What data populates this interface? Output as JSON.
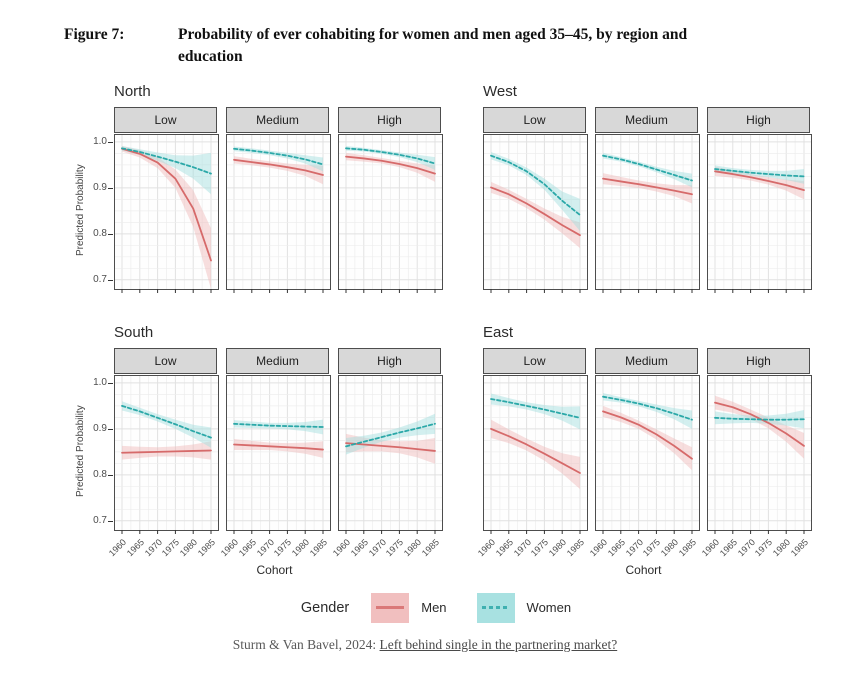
{
  "figure": {
    "label": "Figure 7:",
    "title": "Probability of ever cohabiting for women and men aged 35–45, by region and education"
  },
  "legend": {
    "title": "Gender",
    "men": "Men",
    "women": "Women"
  },
  "footer": {
    "prefix": "Sturm & Van Bavel, 2024: ",
    "link": "Left behind single in the partnering market?"
  },
  "colors": {
    "men": "#d66a6a",
    "men_band": "#f0b9b9",
    "women": "#2ba8a8",
    "women_band": "#9fdede",
    "grid_minor": "#ededed",
    "grid_major": "#e1e1e1",
    "strip_bg": "#d8d8d8",
    "panel_border": "#4d4d4d",
    "tick": "#333333"
  },
  "chart_data": {
    "type": "line",
    "x": [
      1960,
      1965,
      1970,
      1975,
      1980,
      1985
    ],
    "xlabel": "Cohort",
    "ylabel": "Predicted Probability",
    "ylim": [
      0.68,
      1.015
    ],
    "yticks": [
      0.7,
      0.8,
      0.9,
      1.0
    ],
    "grid": true,
    "legend_position": "bottom",
    "facet_labels": [
      "Low",
      "Medium",
      "High"
    ],
    "blocks": [
      {
        "name": "North",
        "panel_start": 0,
        "show_y": true,
        "show_x": false
      },
      {
        "name": "West",
        "panel_start": 3,
        "show_y": false,
        "show_x": false
      },
      {
        "name": "South",
        "panel_start": 6,
        "show_y": true,
        "show_x": true
      },
      {
        "name": "East",
        "panel_start": 9,
        "show_y": false,
        "show_x": true
      }
    ],
    "panels": [
      {
        "region": "North",
        "education": "Low",
        "series": [
          {
            "name": "Men",
            "values": [
              0.985,
              0.974,
              0.955,
              0.92,
              0.855,
              0.742
            ],
            "ci": [
              0.006,
              0.008,
              0.012,
              0.02,
              0.04,
              0.07
            ]
          },
          {
            "name": "Women",
            "values": [
              0.986,
              0.978,
              0.968,
              0.957,
              0.945,
              0.931
            ],
            "ci": [
              0.005,
              0.006,
              0.009,
              0.014,
              0.025,
              0.045
            ]
          }
        ]
      },
      {
        "region": "North",
        "education": "Medium",
        "series": [
          {
            "name": "Men",
            "values": [
              0.961,
              0.956,
              0.951,
              0.945,
              0.938,
              0.928
            ],
            "ci": [
              0.008,
              0.007,
              0.007,
              0.008,
              0.012,
              0.02
            ]
          },
          {
            "name": "Women",
            "values": [
              0.985,
              0.981,
              0.976,
              0.97,
              0.962,
              0.951
            ],
            "ci": [
              0.005,
              0.005,
              0.005,
              0.006,
              0.009,
              0.015
            ]
          }
        ]
      },
      {
        "region": "North",
        "education": "High",
        "series": [
          {
            "name": "Men",
            "values": [
              0.968,
              0.964,
              0.959,
              0.952,
              0.943,
              0.931
            ],
            "ci": [
              0.008,
              0.007,
              0.006,
              0.007,
              0.01,
              0.018
            ]
          },
          {
            "name": "Women",
            "values": [
              0.986,
              0.983,
              0.978,
              0.972,
              0.964,
              0.953
            ],
            "ci": [
              0.005,
              0.004,
              0.004,
              0.005,
              0.008,
              0.014
            ]
          }
        ]
      },
      {
        "region": "West",
        "education": "Low",
        "series": [
          {
            "name": "Men",
            "values": [
              0.901,
              0.886,
              0.866,
              0.843,
              0.819,
              0.797
            ],
            "ci": [
              0.012,
              0.01,
              0.01,
              0.012,
              0.018,
              0.028
            ]
          },
          {
            "name": "Women",
            "values": [
              0.97,
              0.956,
              0.936,
              0.908,
              0.872,
              0.841
            ],
            "ci": [
              0.008,
              0.007,
              0.008,
              0.012,
              0.02,
              0.035
            ]
          }
        ]
      },
      {
        "region": "West",
        "education": "Medium",
        "series": [
          {
            "name": "Men",
            "values": [
              0.92,
              0.914,
              0.908,
              0.901,
              0.894,
              0.886
            ],
            "ci": [
              0.012,
              0.01,
              0.008,
              0.009,
              0.012,
              0.02
            ]
          },
          {
            "name": "Women",
            "values": [
              0.97,
              0.962,
              0.952,
              0.94,
              0.928,
              0.916
            ],
            "ci": [
              0.006,
              0.005,
              0.005,
              0.006,
              0.009,
              0.015
            ]
          }
        ]
      },
      {
        "region": "West",
        "education": "High",
        "series": [
          {
            "name": "Men",
            "values": [
              0.936,
              0.93,
              0.923,
              0.915,
              0.906,
              0.895
            ],
            "ci": [
              0.01,
              0.008,
              0.007,
              0.008,
              0.012,
              0.02
            ]
          },
          {
            "name": "Women",
            "values": [
              0.941,
              0.937,
              0.933,
              0.93,
              0.927,
              0.925
            ],
            "ci": [
              0.008,
              0.006,
              0.006,
              0.007,
              0.01,
              0.016
            ]
          }
        ]
      },
      {
        "region": "South",
        "education": "Low",
        "series": [
          {
            "name": "Men",
            "values": [
              0.848,
              0.849,
              0.85,
              0.851,
              0.852,
              0.853
            ],
            "ci": [
              0.015,
              0.012,
              0.01,
              0.011,
              0.014,
              0.02
            ]
          },
          {
            "name": "Women",
            "values": [
              0.95,
              0.938,
              0.924,
              0.91,
              0.895,
              0.881
            ],
            "ci": [
              0.01,
              0.008,
              0.008,
              0.01,
              0.014,
              0.022
            ]
          }
        ]
      },
      {
        "region": "South",
        "education": "Medium",
        "series": [
          {
            "name": "Men",
            "values": [
              0.866,
              0.864,
              0.862,
              0.86,
              0.858,
              0.855
            ],
            "ci": [
              0.012,
              0.01,
              0.008,
              0.009,
              0.012,
              0.018
            ]
          },
          {
            "name": "Women",
            "values": [
              0.911,
              0.909,
              0.907,
              0.906,
              0.905,
              0.904
            ],
            "ci": [
              0.008,
              0.007,
              0.006,
              0.007,
              0.01,
              0.016
            ]
          }
        ]
      },
      {
        "region": "South",
        "education": "High",
        "series": [
          {
            "name": "Men",
            "values": [
              0.869,
              0.866,
              0.863,
              0.86,
              0.856,
              0.852
            ],
            "ci": [
              0.02,
              0.015,
              0.012,
              0.013,
              0.018,
              0.028
            ]
          },
          {
            "name": "Women",
            "values": [
              0.862,
              0.872,
              0.882,
              0.892,
              0.901,
              0.911
            ],
            "ci": [
              0.018,
              0.013,
              0.01,
              0.011,
              0.015,
              0.022
            ]
          }
        ]
      },
      {
        "region": "East",
        "education": "Low",
        "series": [
          {
            "name": "Men",
            "values": [
              0.9,
              0.884,
              0.866,
              0.846,
              0.825,
              0.804
            ],
            "ci": [
              0.02,
              0.015,
              0.013,
              0.015,
              0.022,
              0.035
            ]
          },
          {
            "name": "Women",
            "values": [
              0.965,
              0.958,
              0.95,
              0.942,
              0.933,
              0.924
            ],
            "ci": [
              0.012,
              0.009,
              0.008,
              0.01,
              0.015,
              0.025
            ]
          }
        ]
      },
      {
        "region": "East",
        "education": "Medium",
        "series": [
          {
            "name": "Men",
            "values": [
              0.938,
              0.925,
              0.909,
              0.888,
              0.863,
              0.835
            ],
            "ci": [
              0.012,
              0.01,
              0.009,
              0.011,
              0.016,
              0.025
            ]
          },
          {
            "name": "Women",
            "values": [
              0.97,
              0.963,
              0.955,
              0.945,
              0.933,
              0.92
            ],
            "ci": [
              0.008,
              0.006,
              0.006,
              0.008,
              0.012,
              0.02
            ]
          }
        ]
      },
      {
        "region": "East",
        "education": "High",
        "series": [
          {
            "name": "Men",
            "values": [
              0.957,
              0.947,
              0.932,
              0.913,
              0.89,
              0.863
            ],
            "ci": [
              0.015,
              0.012,
              0.01,
              0.012,
              0.018,
              0.028
            ]
          },
          {
            "name": "Women",
            "values": [
              0.924,
              0.922,
              0.921,
              0.92,
              0.92,
              0.921
            ],
            "ci": [
              0.014,
              0.01,
              0.008,
              0.009,
              0.013,
              0.02
            ]
          }
        ]
      }
    ]
  }
}
